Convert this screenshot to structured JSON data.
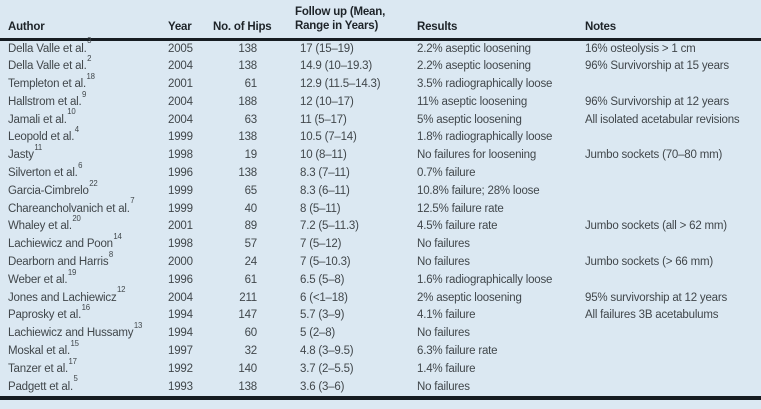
{
  "colors": {
    "background": "#dbe8f2",
    "text": "#41474b",
    "header_text": "#1e2429",
    "rule": "#161c22"
  },
  "table": {
    "columns": {
      "author": "Author",
      "year": "Year",
      "hips": "No. of Hips",
      "followup_line1": "Follow up (Mean,",
      "followup_line2": "Range in Years)",
      "results": "Results",
      "notes": "Notes"
    },
    "rows": [
      {
        "author": "Della Valle et al.",
        "ref": "3",
        "year": "2005",
        "hips": "138",
        "followup": "17 (15–19)",
        "results": "2.2% aseptic loosening",
        "notes": "16% osteolysis > 1 cm"
      },
      {
        "author": "Della Valle et al.",
        "ref": "2",
        "year": "2004",
        "hips": "138",
        "followup": "14.9 (10–19.3)",
        "results": "2.2% aseptic loosening",
        "notes": "96% Survivorship at 15 years"
      },
      {
        "author": "Templeton et al.",
        "ref": "18",
        "year": "2001",
        "hips": "61",
        "followup": "12.9 (11.5–14.3)",
        "results": "3.5% radiographically loose",
        "notes": ""
      },
      {
        "author": "Hallstrom et al.",
        "ref": "9",
        "year": "2004",
        "hips": "188",
        "followup": "12 (10–17)",
        "results": "11% aseptic loosening",
        "notes": "96% Survivorship at 12 years"
      },
      {
        "author": "Jamali et al.",
        "ref": "10",
        "year": "2004",
        "hips": "63",
        "followup": "11 (5–17)",
        "results": "5% aseptic loosening",
        "notes": "All isolated acetabular revisions"
      },
      {
        "author": "Leopold et al.",
        "ref": "4",
        "year": "1999",
        "hips": "138",
        "followup": "10.5 (7–14)",
        "results": "1.8% radiographically loose",
        "notes": ""
      },
      {
        "author": "Jasty",
        "ref": "11",
        "year": "1998",
        "hips": "19",
        "followup": "10 (8–11)",
        "results": "No failures for loosening",
        "notes": "Jumbo sockets (70–80 mm)"
      },
      {
        "author": "Silverton et al.",
        "ref": "6",
        "year": "1996",
        "hips": "138",
        "followup": "8.3 (7–11)",
        "results": "0.7% failure",
        "notes": ""
      },
      {
        "author": "Garcia-Cimbrelo",
        "ref": "22",
        "year": "1999",
        "hips": "65",
        "followup": "8.3 (6–11)",
        "results": "10.8% failure; 28% loose",
        "notes": ""
      },
      {
        "author": "Chareancholvanich et al.",
        "ref": "7",
        "year": "1999",
        "hips": "40",
        "followup": "8 (5–11)",
        "results": "12.5% failure rate",
        "notes": ""
      },
      {
        "author": "Whaley et al.",
        "ref": "20",
        "year": "2001",
        "hips": "89",
        "followup": "7.2 (5–11.3)",
        "results": "4.5% failure rate",
        "notes": "Jumbo sockets (all > 62 mm)"
      },
      {
        "author": "Lachiewicz and Poon",
        "ref": "14",
        "year": "1998",
        "hips": "57",
        "followup": "7 (5–12)",
        "results": "No failures",
        "notes": ""
      },
      {
        "author": "Dearborn and Harris",
        "ref": "8",
        "year": "2000",
        "hips": "24",
        "followup": "7 (5–10.3)",
        "results": "No failures",
        "notes": "Jumbo sockets (> 66 mm)"
      },
      {
        "author": "Weber et al.",
        "ref": "19",
        "year": "1996",
        "hips": "61",
        "followup": "6.5 (5–8)",
        "results": "1.6% radiographically loose",
        "notes": ""
      },
      {
        "author": "Jones and Lachiewicz",
        "ref": "12",
        "year": "2004",
        "hips": "211",
        "followup": "6 (<1–18)",
        "results": "2% aseptic loosening",
        "notes": "95% survivorship at 12 years"
      },
      {
        "author": "Paprosky et al.",
        "ref": "16",
        "year": "1994",
        "hips": "147",
        "followup": "5.7 (3–9)",
        "results": "4.1% failure",
        "notes": "All failures 3B acetabulums"
      },
      {
        "author": "Lachiewicz and Hussamy",
        "ref": "13",
        "year": "1994",
        "hips": "60",
        "followup": "5 (2–8)",
        "results": "No failures",
        "notes": ""
      },
      {
        "author": "Moskal et al.",
        "ref": "15",
        "year": "1997",
        "hips": "32",
        "followup": "4.8 (3–9.5)",
        "results": "6.3% failure rate",
        "notes": ""
      },
      {
        "author": "Tanzer et al.",
        "ref": "17",
        "year": "1992",
        "hips": "140",
        "followup": "3.7 (2–5.5)",
        "results": "1.4% failure",
        "notes": ""
      },
      {
        "author": "Padgett et al.",
        "ref": "5",
        "year": "1993",
        "hips": "138",
        "followup": "3.6 (3–6)",
        "results": "No failures",
        "notes": ""
      }
    ]
  }
}
